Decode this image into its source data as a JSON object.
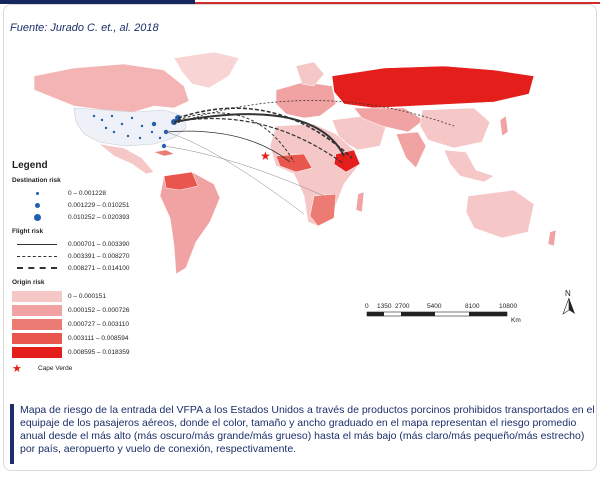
{
  "source": "Fuente: Jurado C. et., al. 2018",
  "legend": {
    "title": "Legend",
    "destination_title": "Destination risk",
    "destination": [
      "0 – 0.001228",
      "0.001229 – 0.010251",
      "0.010252 – 0.020393"
    ],
    "flight_title": "Flight risk",
    "flight": [
      "0.000701 – 0.003390",
      "0.003391 – 0.008270",
      "0.008271 – 0.014100"
    ],
    "origin_title": "Origin risk",
    "origin": [
      {
        "label": "0 – 0.000151",
        "color": "#f6c7c7"
      },
      {
        "label": "0.000152 – 0.000726",
        "color": "#f1a3a3"
      },
      {
        "label": "0.000727 – 0.003110",
        "color": "#ec7b74"
      },
      {
        "label": "0.003111 – 0.008594",
        "color": "#e8564d"
      },
      {
        "label": "0.008595 – 0.018359",
        "color": "#e41f1b"
      }
    ],
    "cape_verde": "Cape Verde"
  },
  "scale": {
    "ticks": [
      "0",
      "1350",
      "2700",
      "5400",
      "8100",
      "10800"
    ],
    "unit": "Km"
  },
  "north": "N",
  "caption": "Mapa de riesgo de la entrada del VFPA a los Estados Unidos a través de productos porcinos prohibidos transportados en el equipaje de los pasajeros aéreos, donde el color, tamaño y ancho graduado en el mapa representan el riesgo promedio anual desde el más alto (más oscuro/más grande/más grueso) hasta el más bajo (más claro/más pequeño/más estrecho) por país, aeropuerto y vuelo de conexión, respectivamente."
}
